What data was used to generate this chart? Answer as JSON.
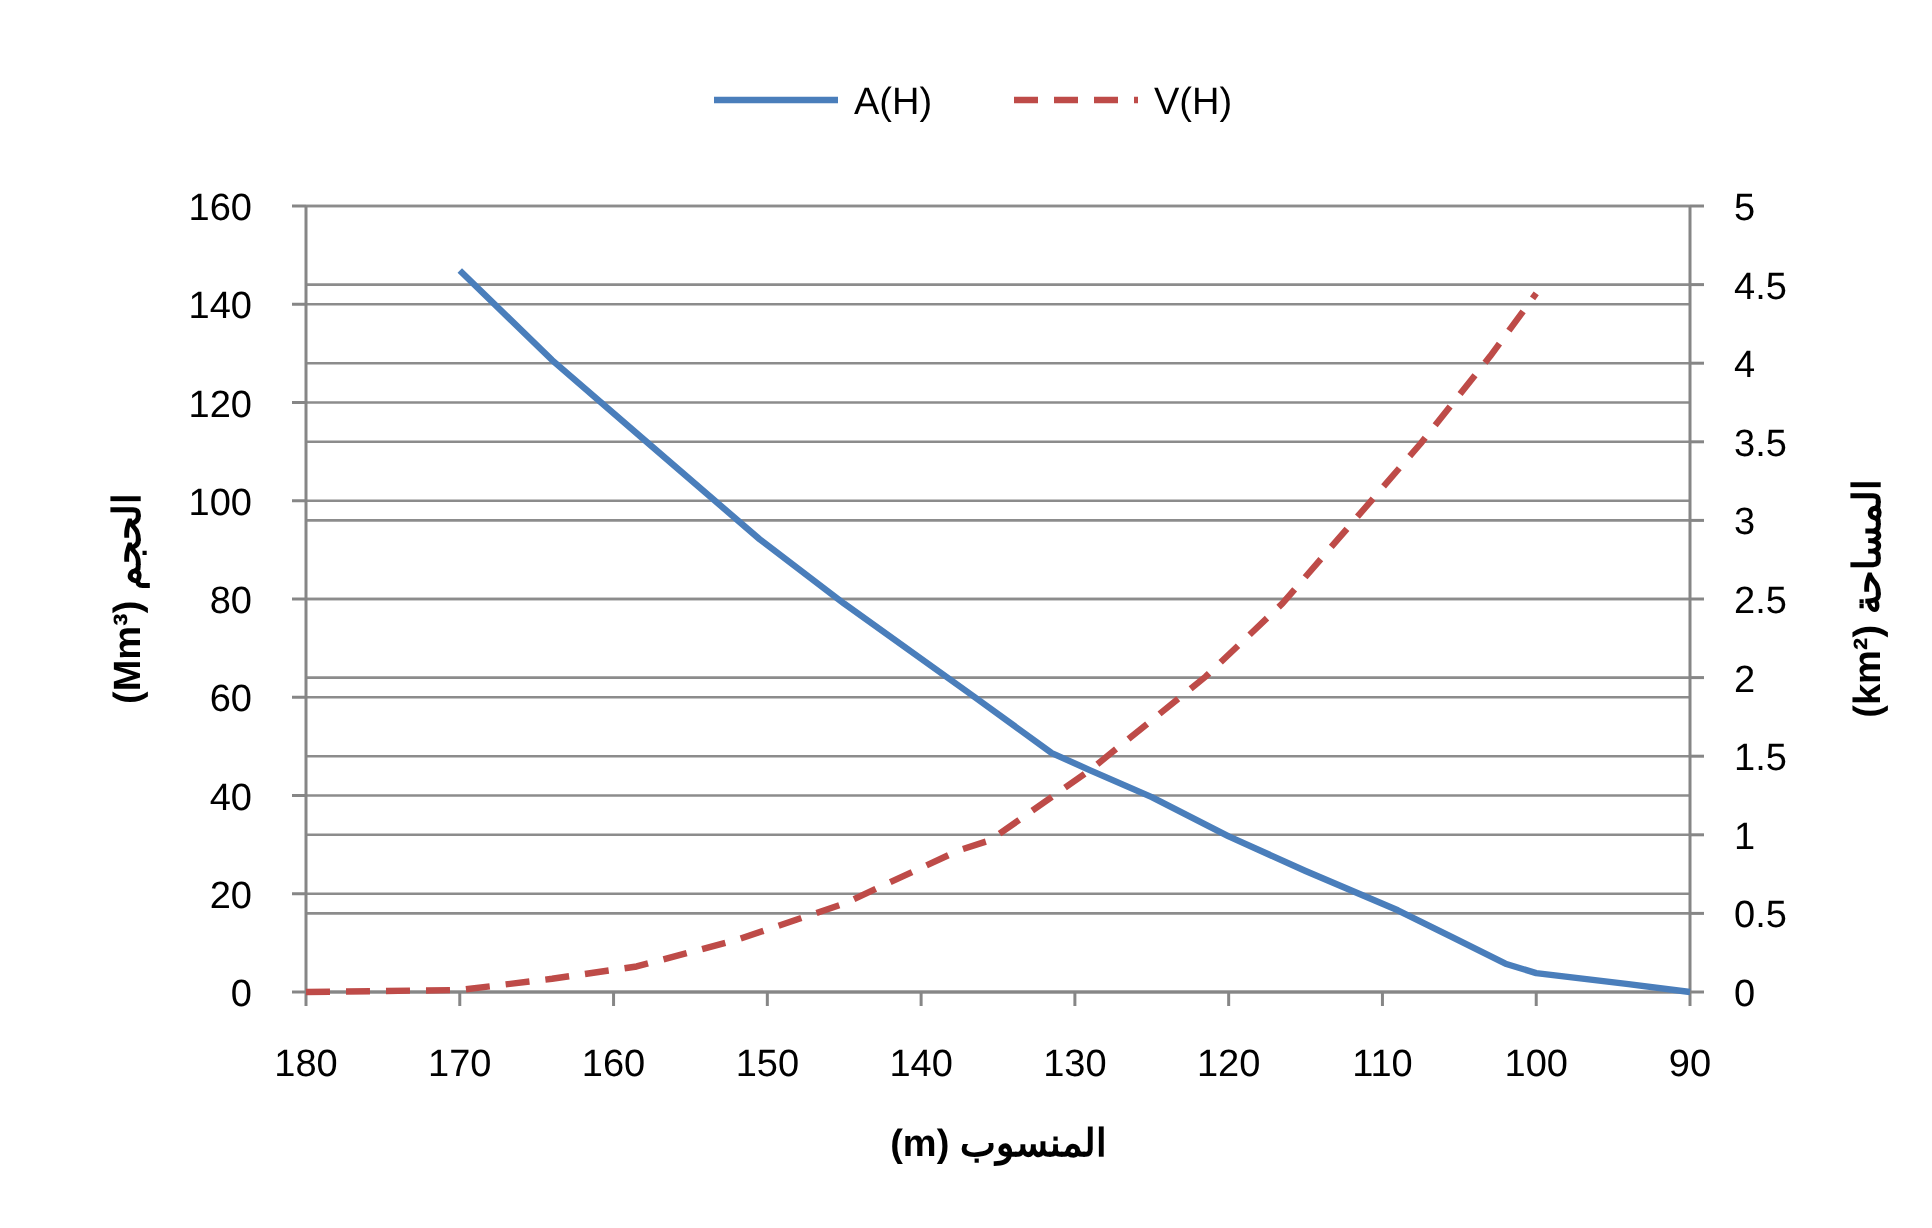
{
  "chart_data": {
    "type": "line",
    "xlabel": "المنسوب (m)",
    "ylabel": "الحجم (Mm³)",
    "y2label": "المساحة (km²)",
    "xlim": [
      180,
      90
    ],
    "xticks": [
      180,
      170,
      160,
      150,
      140,
      130,
      120,
      110,
      100,
      90
    ],
    "ylim": [
      0,
      160
    ],
    "yticks": [
      0,
      20,
      40,
      60,
      80,
      100,
      120,
      140,
      160
    ],
    "y2lim": [
      0,
      5
    ],
    "y2ticks": [
      0,
      0.5,
      1,
      1.5,
      2,
      2.5,
      3,
      3.5,
      4,
      4.5,
      5
    ],
    "grid": "y",
    "legend": "top",
    "marker": "none",
    "series": [
      {
        "name": "A(H)",
        "color": "#4a7ebb",
        "axis": "y2",
        "line_style": "solid",
        "x": [
          170,
          164,
          157.5,
          150.5,
          145,
          137,
          131.5,
          129,
          125,
          120,
          115,
          109,
          105.5,
          102,
          100,
          94,
          90
        ],
        "values": [
          4.59,
          4.02,
          3.47,
          2.88,
          2.47,
          1.91,
          1.52,
          1.41,
          1.24,
          0.99,
          0.77,
          0.52,
          0.35,
          0.18,
          0.12,
          0.05,
          0
        ]
      },
      {
        "name": "V(H)",
        "color": "#be4b48",
        "line_style": "dashed",
        "x": [
          180,
          170,
          164,
          158.5,
          152,
          145,
          137.5,
          135.5,
          129,
          121.5,
          116.5,
          112,
          107.5,
          103,
          100
        ],
        "values": [
          0,
          0.4,
          2.7,
          5.2,
          10.6,
          18,
          28.9,
          30.9,
          45.2,
          64.2,
          79.1,
          95.4,
          111.7,
          129.4,
          142.2
        ]
      }
    ]
  }
}
